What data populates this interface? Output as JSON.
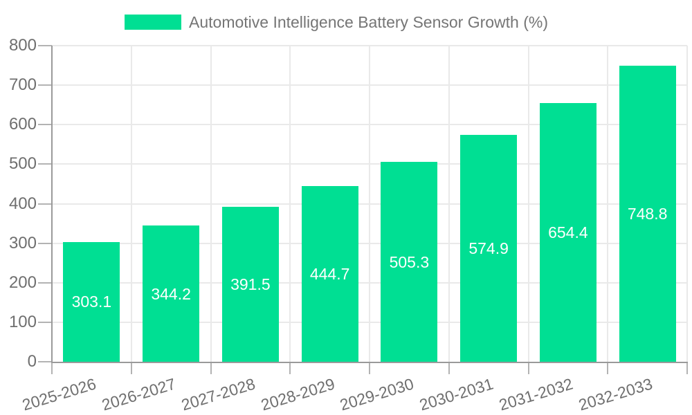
{
  "chart_data": {
    "type": "bar",
    "title": "Automotive Intelligence Battery Sensor Growth (%)",
    "series": [
      {
        "name": "Automotive Intelligence Battery Sensor Growth (%)",
        "values": [
          303.1,
          344.2,
          391.5,
          444.7,
          505.3,
          574.9,
          654.4,
          748.8
        ]
      }
    ],
    "categories": [
      "2025-2026",
      "2026-2027",
      "2027-2028",
      "2028-2029",
      "2029-2030",
      "2030-2031",
      "2031-2032",
      "2032-2033"
    ],
    "xlabel": "",
    "ylabel": "",
    "ylim": [
      0,
      800
    ],
    "ytick_step": 100,
    "ytick_labels": [
      "0",
      "100",
      "200",
      "300",
      "400",
      "500",
      "600",
      "700",
      "800"
    ],
    "grid": true,
    "legend_position": "top",
    "value_label_position": "inside-center",
    "value_labels": [
      "303.1",
      "344.2",
      "391.5",
      "444.7",
      "505.3",
      "574.9",
      "654.4",
      "748.8"
    ]
  },
  "colors": {
    "bar": "#00DF93",
    "axis": "#9a9a9a",
    "tick": "#b3b3b3",
    "grid": "#e9e9e9",
    "label_text": "#6f6f6f",
    "legend_text": "#757575",
    "value_text": "#ffffff",
    "background": "#ffffff"
  }
}
